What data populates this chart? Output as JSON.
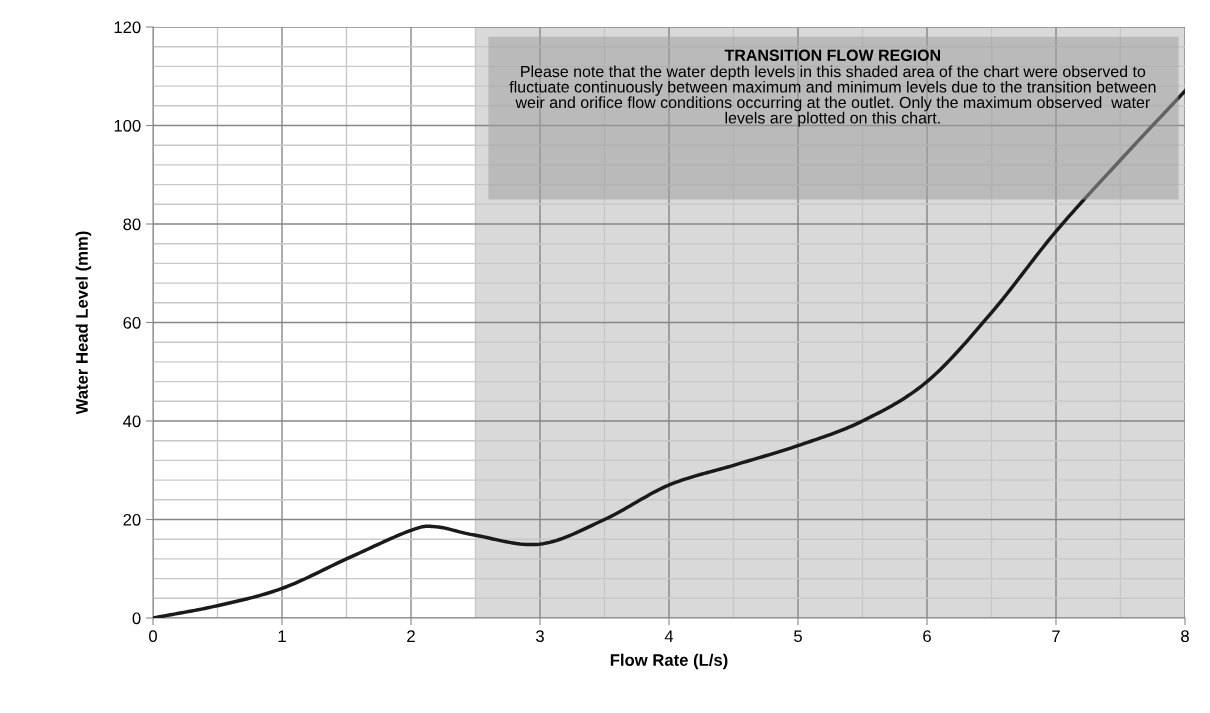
{
  "chart_data": {
    "type": "line",
    "xlabel": "Flow Rate (L/s)",
    "ylabel": "Water Head Level (mm)",
    "x": [
      0,
      0.5,
      1,
      1.5,
      2,
      2.2,
      2.5,
      3,
      3.5,
      4,
      4.5,
      5,
      5.5,
      6,
      6.5,
      7,
      7.5,
      8
    ],
    "series": [
      {
        "color": "#1a1a1a",
        "values": [
          0,
          2.5,
          6,
          12,
          17.8,
          18.5,
          16.8,
          15,
          20,
          27,
          31,
          35,
          40,
          48,
          62,
          78.5,
          93,
          107
        ]
      }
    ],
    "xlim": [
      0,
      8
    ],
    "xticks": [
      0,
      1,
      2,
      3,
      4,
      5,
      6,
      7,
      8
    ],
    "ylim": [
      0,
      120
    ],
    "yticks": [
      0,
      20,
      40,
      60,
      80,
      100,
      120
    ],
    "bands": [
      {
        "axis": "x",
        "from": 2.5,
        "to": 8,
        "color": "#d9d9d9"
      }
    ],
    "annotations": [
      "TRANSITION FLOW REGION",
      "Please note that the water depth levels in this shaded area of the chart were observed to fluctuate continuously between maximum and minimum levels due to the transition between weir and orifice flow conditions occurring at the outlet. Only the maximum observed  water levels are plotted on this chart."
    ],
    "grid": true,
    "legend": false,
    "marker": "none",
    "line_style": "solid"
  }
}
